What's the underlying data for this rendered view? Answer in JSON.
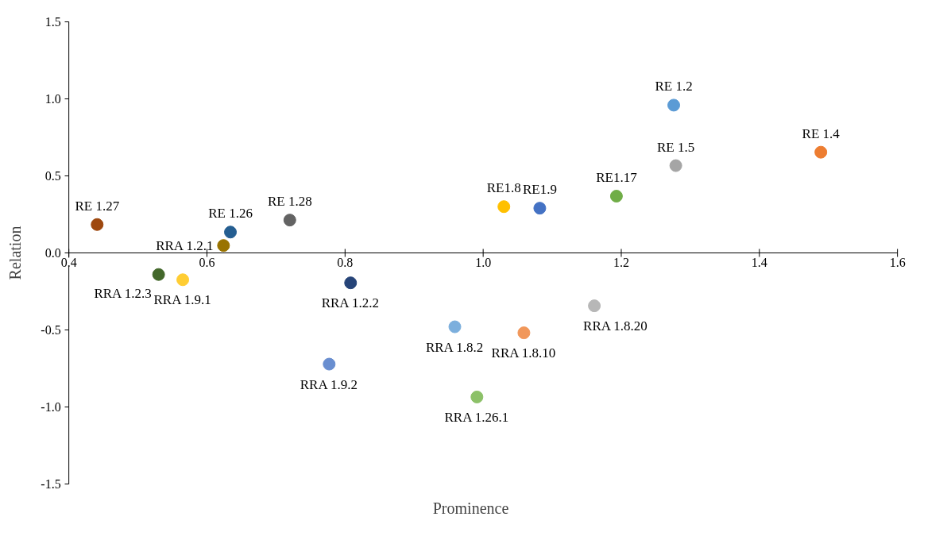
{
  "chart_data": {
    "type": "scatter",
    "xlabel": "Prominence",
    "ylabel": "Relation",
    "xlim": [
      0.4,
      1.6
    ],
    "ylim": [
      -1.5,
      1.5
    ],
    "xticks": [
      {
        "value": 0.4,
        "label": "0.4"
      },
      {
        "value": 0.6,
        "label": "0.6"
      },
      {
        "value": 0.8,
        "label": "0.8"
      },
      {
        "value": 1.0,
        "label": "1.0"
      },
      {
        "value": 1.2,
        "label": "1.2"
      },
      {
        "value": 1.4,
        "label": "1.4"
      },
      {
        "value": 1.6,
        "label": "1.6"
      }
    ],
    "yticks": [
      {
        "value": -1.5,
        "label": "-1.5"
      },
      {
        "value": -1.0,
        "label": "-1.0"
      },
      {
        "value": -0.5,
        "label": "-0.5"
      },
      {
        "value": 0,
        "label": "0.0"
      },
      {
        "value": 0.5,
        "label": "0.5"
      },
      {
        "value": 1.0,
        "label": "1.0"
      },
      {
        "value": 1.5,
        "label": "1.5"
      }
    ],
    "grid": false,
    "legend": false,
    "marker": "circle",
    "series": [
      {
        "name": "RE 1.27",
        "color": "#9e480e",
        "x": [
          0.441
        ],
        "values": [
          0.184
        ]
      },
      {
        "name": "RRA 1.2.1",
        "color": "#997300",
        "x": [
          0.624
        ],
        "values": [
          0.048
        ]
      },
      {
        "name": "RE 1.26",
        "color": "#255e91",
        "x": [
          0.634
        ],
        "values": [
          0.135
        ]
      },
      {
        "name": "RE 1.28",
        "color": "#636363",
        "x": [
          0.72
        ],
        "values": [
          0.213
        ]
      },
      {
        "name": "RRA 1.2.3",
        "color": "#43682b",
        "x": [
          0.53
        ],
        "values": [
          -0.14
        ]
      },
      {
        "name": "RRA 1.9.1",
        "color": "#ffcd33",
        "x": [
          0.565
        ],
        "values": [
          -0.174
        ]
      },
      {
        "name": "RRA 1.2.2",
        "color": "#264478",
        "x": [
          0.808
        ],
        "values": [
          -0.194
        ]
      },
      {
        "name": "RRA 1.9.2",
        "color": "#698ed0",
        "x": [
          0.777
        ],
        "values": [
          -0.721
        ]
      },
      {
        "name": "RRA 1.8.2",
        "color": "#7cafdd",
        "x": [
          0.959
        ],
        "values": [
          -0.479
        ]
      },
      {
        "name": "RRA 1.26.1",
        "color": "#8cc168",
        "x": [
          0.991
        ],
        "values": [
          -0.934
        ]
      },
      {
        "name": "RRA 1.8.10",
        "color": "#f1975a",
        "x": [
          1.059
        ],
        "values": [
          -0.518
        ]
      },
      {
        "name": "RRA 1.8.20",
        "color": "#b7b7b7",
        "x": [
          1.161
        ],
        "values": [
          -0.343
        ]
      },
      {
        "name": "RE1.8",
        "color": "#ffc000",
        "x": [
          1.03
        ],
        "values": [
          0.3
        ]
      },
      {
        "name": "RE1.9",
        "color": "#4472c4",
        "x": [
          1.082
        ],
        "values": [
          0.29
        ]
      },
      {
        "name": "RE1.17",
        "color": "#70ad47",
        "x": [
          1.193
        ],
        "values": [
          0.368
        ]
      },
      {
        "name": "RE 1.2",
        "color": "#5b9bd5",
        "x": [
          1.276
        ],
        "values": [
          0.958
        ]
      },
      {
        "name": "RE 1.5",
        "color": "#a5a5a5",
        "x": [
          1.279
        ],
        "values": [
          0.566
        ]
      },
      {
        "name": "RE 1.4",
        "color": "#ed7d31",
        "x": [
          1.489
        ],
        "values": [
          0.653
        ]
      }
    ]
  }
}
